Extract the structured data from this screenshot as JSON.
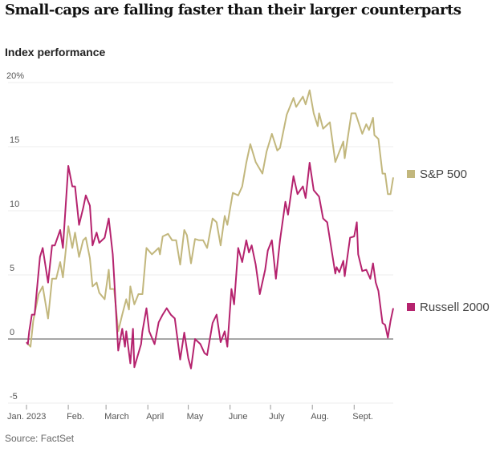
{
  "title": "Small-caps are falling faster than their larger counterparts",
  "subtitle": "Index performance",
  "source": "Source: FactSet",
  "chart_data": {
    "type": "line",
    "title": "Small-caps are falling faster than their larger counterparts",
    "ylabel": "Index performance",
    "xlabel": "",
    "xunit": "day of year 2023",
    "xlim": [
      0,
      272
    ],
    "ylim": [
      -5,
      20
    ],
    "yticks": [
      {
        "v": 20,
        "label": "20%"
      },
      {
        "v": 15,
        "label": "15"
      },
      {
        "v": 10,
        "label": "10"
      },
      {
        "v": 5,
        "label": "5"
      },
      {
        "v": 0,
        "label": "0"
      },
      {
        "v": -5,
        "label": "-5"
      }
    ],
    "xticks": [
      {
        "v": 0,
        "label": "Jan. 2023"
      },
      {
        "v": 31,
        "label": "Feb."
      },
      {
        "v": 59,
        "label": "March"
      },
      {
        "v": 90,
        "label": "April"
      },
      {
        "v": 120,
        "label": "May"
      },
      {
        "v": 151,
        "label": "June"
      },
      {
        "v": 181,
        "label": "July"
      },
      {
        "v": 212,
        "label": "Aug."
      },
      {
        "v": 243,
        "label": "Sept."
      }
    ],
    "grid": true,
    "legend_placement": "right, at line ends",
    "series": [
      {
        "name": "S&P 500",
        "color": "#c2b77d",
        "points": [
          [
            0,
            -0.25
          ],
          [
            3,
            -0.6
          ],
          [
            5,
            1.4
          ],
          [
            9,
            3.5
          ],
          [
            12,
            4.1
          ],
          [
            16,
            1.6
          ],
          [
            19,
            4.7
          ],
          [
            22,
            4.7
          ],
          [
            25,
            6
          ],
          [
            27,
            4.8
          ],
          [
            31,
            8.8
          ],
          [
            34,
            7.1
          ],
          [
            36,
            8.3
          ],
          [
            39,
            6.4
          ],
          [
            42,
            7.7
          ],
          [
            44,
            7.9
          ],
          [
            47,
            6.3
          ],
          [
            49,
            4.1
          ],
          [
            52,
            4.4
          ],
          [
            54,
            3.6
          ],
          [
            58,
            3.1
          ],
          [
            61,
            5.4
          ],
          [
            62,
            3.9
          ],
          [
            65,
            3.9
          ],
          [
            68,
            0.6
          ],
          [
            71,
            1.9
          ],
          [
            74,
            3.1
          ],
          [
            76,
            2.3
          ],
          [
            77,
            4.1
          ],
          [
            80,
            2.7
          ],
          [
            83,
            3.5
          ],
          [
            86,
            3.5
          ],
          [
            89,
            7.1
          ],
          [
            93,
            6.6
          ],
          [
            98,
            7.1
          ],
          [
            99,
            6.6
          ],
          [
            101,
            8
          ],
          [
            105,
            8.2
          ],
          [
            108,
            7.7
          ],
          [
            111,
            7.7
          ],
          [
            114,
            5.8
          ],
          [
            117,
            8.5
          ],
          [
            119,
            8.1
          ],
          [
            122,
            5.9
          ],
          [
            125,
            7.8
          ],
          [
            128,
            7.7
          ],
          [
            131,
            7.7
          ],
          [
            134,
            7.1
          ],
          [
            138,
            9.4
          ],
          [
            141,
            9.1
          ],
          [
            144,
            7.3
          ],
          [
            147,
            9.6
          ],
          [
            149,
            8.9
          ],
          [
            153,
            11.4
          ],
          [
            157,
            11.2
          ],
          [
            160,
            11.9
          ],
          [
            163,
            13.75
          ],
          [
            166,
            15.2
          ],
          [
            170,
            13.8
          ],
          [
            175,
            12.9
          ],
          [
            178,
            14.6
          ],
          [
            182,
            16
          ],
          [
            186,
            14.7
          ],
          [
            188,
            14.9
          ],
          [
            193,
            17.5
          ],
          [
            198,
            18.8
          ],
          [
            200,
            18.1
          ],
          [
            205,
            18.9
          ],
          [
            207,
            18.3
          ],
          [
            210,
            19.4
          ],
          [
            213,
            17.6
          ],
          [
            216,
            16.6
          ],
          [
            217,
            17.6
          ],
          [
            220,
            16.4
          ],
          [
            225,
            16.9
          ],
          [
            229,
            13.8
          ],
          [
            232,
            14.6
          ],
          [
            235,
            15.4
          ],
          [
            236,
            14.1
          ],
          [
            241,
            17.6
          ],
          [
            244,
            17.6
          ],
          [
            249,
            16
          ],
          [
            252,
            16.75
          ],
          [
            254,
            16.3
          ],
          [
            257,
            17.25
          ],
          [
            258,
            15.9
          ],
          [
            261,
            15.6
          ],
          [
            264,
            12.9
          ],
          [
            266,
            12.9
          ],
          [
            268,
            11.3
          ],
          [
            270,
            11.3
          ],
          [
            272,
            12.6
          ]
        ]
      },
      {
        "name": "Russell 2000",
        "color": "#b5236e",
        "points": [
          [
            0,
            -0.25
          ],
          [
            1,
            -0.4
          ],
          [
            2,
            0.6
          ],
          [
            4,
            1.9
          ],
          [
            6,
            1.9
          ],
          [
            10,
            6.4
          ],
          [
            12,
            7.1
          ],
          [
            16,
            4.4
          ],
          [
            19,
            7.3
          ],
          [
            21,
            7.3
          ],
          [
            25,
            8.5
          ],
          [
            27,
            7.1
          ],
          [
            31,
            13.5
          ],
          [
            34,
            11.9
          ],
          [
            36,
            11.9
          ],
          [
            39,
            8.9
          ],
          [
            42,
            10.2
          ],
          [
            44,
            11.2
          ],
          [
            47,
            10.4
          ],
          [
            49,
            7.3
          ],
          [
            52,
            8.3
          ],
          [
            54,
            7.5
          ],
          [
            58,
            7.9
          ],
          [
            61,
            9.4
          ],
          [
            64,
            6.6
          ],
          [
            65,
            4.8
          ],
          [
            68,
            -0.9
          ],
          [
            71,
            0.8
          ],
          [
            73,
            -0.6
          ],
          [
            74,
            0.6
          ],
          [
            77,
            -1.9
          ],
          [
            79,
            0.8
          ],
          [
            80,
            -2.2
          ],
          [
            85,
            -0.4
          ],
          [
            86,
            0.6
          ],
          [
            89,
            2.4
          ],
          [
            91,
            0.6
          ],
          [
            95,
            -0.4
          ],
          [
            98,
            1.3
          ],
          [
            101,
            1.9
          ],
          [
            104,
            2.4
          ],
          [
            107,
            1.9
          ],
          [
            110,
            1.6
          ],
          [
            114,
            -1.6
          ],
          [
            117,
            0.5
          ],
          [
            120,
            -1.5
          ],
          [
            122,
            -2.3
          ],
          [
            125,
            0
          ],
          [
            129,
            -0.4
          ],
          [
            132,
            -1.1
          ],
          [
            134,
            -1.25
          ],
          [
            138,
            1.25
          ],
          [
            141,
            1.9
          ],
          [
            144,
            -0.25
          ],
          [
            147,
            0.6
          ],
          [
            149,
            -0.6
          ],
          [
            152,
            3.9
          ],
          [
            154,
            2.7
          ],
          [
            157,
            7.1
          ],
          [
            160,
            6
          ],
          [
            163,
            7.7
          ],
          [
            165,
            6.75
          ],
          [
            167,
            7.3
          ],
          [
            170,
            5.8
          ],
          [
            173,
            3.5
          ],
          [
            177,
            5.4
          ],
          [
            179,
            6.9
          ],
          [
            182,
            7.7
          ],
          [
            185,
            4.7
          ],
          [
            188,
            7.7
          ],
          [
            192,
            10.7
          ],
          [
            194,
            9.7
          ],
          [
            198,
            12.7
          ],
          [
            201,
            11.3
          ],
          [
            205,
            11.9
          ],
          [
            207,
            11
          ],
          [
            210,
            13.75
          ],
          [
            213,
            11.6
          ],
          [
            217,
            11.1
          ],
          [
            220,
            9.4
          ],
          [
            223,
            9.1
          ],
          [
            229,
            5.1
          ],
          [
            230,
            5.6
          ],
          [
            232,
            5.2
          ],
          [
            235,
            6.1
          ],
          [
            236,
            4.9
          ],
          [
            240,
            7.9
          ],
          [
            243,
            8
          ],
          [
            245,
            9.1
          ],
          [
            246,
            6.6
          ],
          [
            249,
            5.3
          ],
          [
            252,
            5.4
          ],
          [
            255,
            4.7
          ],
          [
            257,
            5.9
          ],
          [
            259,
            4.4
          ],
          [
            261,
            3.75
          ],
          [
            264,
            1.25
          ],
          [
            266,
            1.1
          ],
          [
            268,
            0.1
          ],
          [
            270,
            1.4
          ],
          [
            272,
            2.4
          ]
        ]
      }
    ]
  }
}
